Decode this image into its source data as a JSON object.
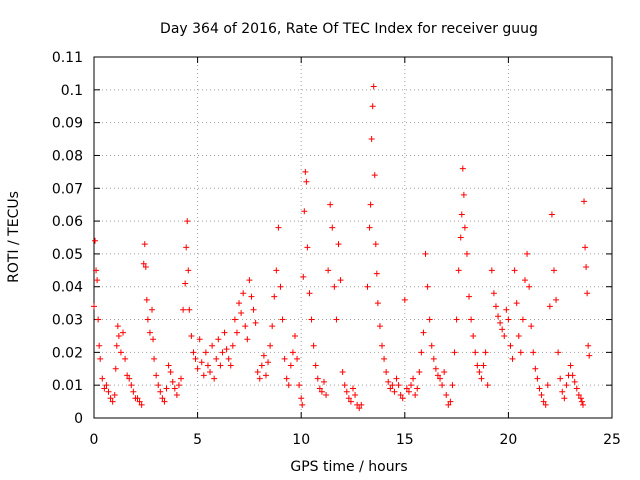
{
  "chart_data": {
    "type": "scatter",
    "title": "Day 364 of 2016, Rate Of TEC Index for receiver guug",
    "xlabel": "GPS time / hours",
    "ylabel": "ROTI / TECUs",
    "xlim": [
      0,
      25
    ],
    "ylim": [
      0,
      0.11
    ],
    "xticks": [
      "0",
      "5",
      "10",
      "15",
      "20",
      "25"
    ],
    "yticks": [
      "0",
      "0.01",
      "0.02",
      "0.03",
      "0.04",
      "0.05",
      "0.06",
      "0.07",
      "0.08",
      "0.09",
      "0.1",
      "0.11"
    ],
    "grid": true,
    "marker": "plus",
    "color": "#ff0000",
    "points": [
      [
        0.0,
        0.034
      ],
      [
        0.05,
        0.054
      ],
      [
        0.1,
        0.045
      ],
      [
        0.15,
        0.042
      ],
      [
        0.2,
        0.03
      ],
      [
        0.25,
        0.022
      ],
      [
        0.3,
        0.018
      ],
      [
        0.4,
        0.012
      ],
      [
        0.5,
        0.009
      ],
      [
        0.6,
        0.01
      ],
      [
        0.7,
        0.008
      ],
      [
        0.8,
        0.006
      ],
      [
        0.9,
        0.005
      ],
      [
        1.0,
        0.007
      ],
      [
        1.05,
        0.015
      ],
      [
        1.1,
        0.022
      ],
      [
        1.15,
        0.028
      ],
      [
        1.2,
        0.025
      ],
      [
        1.3,
        0.02
      ],
      [
        1.4,
        0.026
      ],
      [
        1.5,
        0.018
      ],
      [
        1.6,
        0.013
      ],
      [
        1.7,
        0.012
      ],
      [
        1.8,
        0.01
      ],
      [
        1.9,
        0.008
      ],
      [
        2.0,
        0.006
      ],
      [
        2.1,
        0.006
      ],
      [
        2.2,
        0.005
      ],
      [
        2.3,
        0.004
      ],
      [
        2.4,
        0.047
      ],
      [
        2.45,
        0.053
      ],
      [
        2.5,
        0.046
      ],
      [
        2.55,
        0.036
      ],
      [
        2.6,
        0.03
      ],
      [
        2.7,
        0.026
      ],
      [
        2.8,
        0.033
      ],
      [
        2.85,
        0.024
      ],
      [
        2.9,
        0.018
      ],
      [
        3.0,
        0.013
      ],
      [
        3.1,
        0.01
      ],
      [
        3.2,
        0.008
      ],
      [
        3.3,
        0.006
      ],
      [
        3.4,
        0.005
      ],
      [
        3.5,
        0.009
      ],
      [
        3.6,
        0.016
      ],
      [
        3.7,
        0.014
      ],
      [
        3.8,
        0.011
      ],
      [
        3.9,
        0.009
      ],
      [
        4.0,
        0.007
      ],
      [
        4.1,
        0.01
      ],
      [
        4.2,
        0.012
      ],
      [
        4.3,
        0.033
      ],
      [
        4.4,
        0.041
      ],
      [
        4.45,
        0.052
      ],
      [
        4.5,
        0.06
      ],
      [
        4.55,
        0.045
      ],
      [
        4.6,
        0.033
      ],
      [
        4.7,
        0.025
      ],
      [
        4.8,
        0.02
      ],
      [
        4.9,
        0.018
      ],
      [
        5.0,
        0.015
      ],
      [
        5.1,
        0.024
      ],
      [
        5.2,
        0.017
      ],
      [
        5.3,
        0.013
      ],
      [
        5.4,
        0.02
      ],
      [
        5.5,
        0.016
      ],
      [
        5.6,
        0.014
      ],
      [
        5.7,
        0.022
      ],
      [
        5.8,
        0.012
      ],
      [
        5.9,
        0.018
      ],
      [
        6.0,
        0.024
      ],
      [
        6.1,
        0.016
      ],
      [
        6.2,
        0.02
      ],
      [
        6.3,
        0.026
      ],
      [
        6.4,
        0.021
      ],
      [
        6.5,
        0.018
      ],
      [
        6.6,
        0.016
      ],
      [
        6.7,
        0.022
      ],
      [
        6.8,
        0.03
      ],
      [
        6.9,
        0.026
      ],
      [
        7.0,
        0.035
      ],
      [
        7.1,
        0.032
      ],
      [
        7.2,
        0.038
      ],
      [
        7.3,
        0.028
      ],
      [
        7.4,
        0.024
      ],
      [
        7.5,
        0.042
      ],
      [
        7.6,
        0.037
      ],
      [
        7.7,
        0.033
      ],
      [
        7.8,
        0.029
      ],
      [
        7.9,
        0.014
      ],
      [
        8.0,
        0.012
      ],
      [
        8.1,
        0.016
      ],
      [
        8.2,
        0.019
      ],
      [
        8.3,
        0.013
      ],
      [
        8.4,
        0.017
      ],
      [
        8.5,
        0.022
      ],
      [
        8.6,
        0.028
      ],
      [
        8.7,
        0.037
      ],
      [
        8.8,
        0.045
      ],
      [
        8.9,
        0.058
      ],
      [
        9.0,
        0.04
      ],
      [
        9.1,
        0.03
      ],
      [
        9.2,
        0.018
      ],
      [
        9.3,
        0.012
      ],
      [
        9.4,
        0.01
      ],
      [
        9.5,
        0.016
      ],
      [
        9.6,
        0.02
      ],
      [
        9.7,
        0.025
      ],
      [
        9.8,
        0.018
      ],
      [
        9.9,
        0.01
      ],
      [
        10.0,
        0.006
      ],
      [
        10.05,
        0.004
      ],
      [
        10.1,
        0.043
      ],
      [
        10.15,
        0.063
      ],
      [
        10.2,
        0.075
      ],
      [
        10.25,
        0.072
      ],
      [
        10.3,
        0.052
      ],
      [
        10.4,
        0.038
      ],
      [
        10.5,
        0.03
      ],
      [
        10.6,
        0.022
      ],
      [
        10.7,
        0.016
      ],
      [
        10.8,
        0.012
      ],
      [
        10.9,
        0.009
      ],
      [
        11.0,
        0.008
      ],
      [
        11.1,
        0.011
      ],
      [
        11.2,
        0.007
      ],
      [
        11.3,
        0.045
      ],
      [
        11.4,
        0.065
      ],
      [
        11.5,
        0.058
      ],
      [
        11.6,
        0.04
      ],
      [
        11.7,
        0.03
      ],
      [
        11.8,
        0.053
      ],
      [
        11.9,
        0.042
      ],
      [
        12.0,
        0.014
      ],
      [
        12.1,
        0.01
      ],
      [
        12.2,
        0.008
      ],
      [
        12.3,
        0.006
      ],
      [
        12.4,
        0.005
      ],
      [
        12.5,
        0.009
      ],
      [
        12.6,
        0.007
      ],
      [
        12.7,
        0.004
      ],
      [
        12.8,
        0.003
      ],
      [
        12.9,
        0.004
      ],
      [
        13.2,
        0.04
      ],
      [
        13.3,
        0.058
      ],
      [
        13.35,
        0.065
      ],
      [
        13.4,
        0.085
      ],
      [
        13.45,
        0.095
      ],
      [
        13.5,
        0.101
      ],
      [
        13.55,
        0.074
      ],
      [
        13.6,
        0.053
      ],
      [
        13.65,
        0.044
      ],
      [
        13.7,
        0.035
      ],
      [
        13.8,
        0.028
      ],
      [
        13.9,
        0.022
      ],
      [
        14.0,
        0.018
      ],
      [
        14.1,
        0.014
      ],
      [
        14.2,
        0.011
      ],
      [
        14.3,
        0.009
      ],
      [
        14.4,
        0.01
      ],
      [
        14.5,
        0.008
      ],
      [
        14.6,
        0.012
      ],
      [
        14.7,
        0.01
      ],
      [
        14.8,
        0.007
      ],
      [
        14.9,
        0.006
      ],
      [
        15.0,
        0.036
      ],
      [
        15.1,
        0.009
      ],
      [
        15.2,
        0.008
      ],
      [
        15.3,
        0.01
      ],
      [
        15.4,
        0.012
      ],
      [
        15.5,
        0.007
      ],
      [
        15.6,
        0.009
      ],
      [
        15.7,
        0.014
      ],
      [
        15.8,
        0.02
      ],
      [
        15.9,
        0.026
      ],
      [
        16.0,
        0.05
      ],
      [
        16.1,
        0.04
      ],
      [
        16.2,
        0.03
      ],
      [
        16.3,
        0.022
      ],
      [
        16.4,
        0.018
      ],
      [
        16.5,
        0.015
      ],
      [
        16.6,
        0.013
      ],
      [
        16.7,
        0.012
      ],
      [
        16.8,
        0.01
      ],
      [
        16.9,
        0.014
      ],
      [
        17.0,
        0.007
      ],
      [
        17.1,
        0.004
      ],
      [
        17.2,
        0.005
      ],
      [
        17.3,
        0.01
      ],
      [
        17.4,
        0.02
      ],
      [
        17.5,
        0.03
      ],
      [
        17.6,
        0.045
      ],
      [
        17.7,
        0.055
      ],
      [
        17.75,
        0.062
      ],
      [
        17.8,
        0.076
      ],
      [
        17.85,
        0.068
      ],
      [
        17.9,
        0.058
      ],
      [
        18.0,
        0.05
      ],
      [
        18.1,
        0.037
      ],
      [
        18.2,
        0.03
      ],
      [
        18.3,
        0.025
      ],
      [
        18.4,
        0.02
      ],
      [
        18.5,
        0.016
      ],
      [
        18.6,
        0.014
      ],
      [
        18.7,
        0.012
      ],
      [
        18.8,
        0.016
      ],
      [
        18.9,
        0.02
      ],
      [
        19.0,
        0.01
      ],
      [
        19.2,
        0.045
      ],
      [
        19.3,
        0.038
      ],
      [
        19.4,
        0.034
      ],
      [
        19.5,
        0.031
      ],
      [
        19.6,
        0.029
      ],
      [
        19.7,
        0.027
      ],
      [
        19.8,
        0.025
      ],
      [
        19.9,
        0.033
      ],
      [
        20.0,
        0.03
      ],
      [
        20.1,
        0.022
      ],
      [
        20.2,
        0.018
      ],
      [
        20.3,
        0.045
      ],
      [
        20.4,
        0.035
      ],
      [
        20.5,
        0.025
      ],
      [
        20.6,
        0.02
      ],
      [
        20.7,
        0.03
      ],
      [
        20.8,
        0.042
      ],
      [
        20.9,
        0.05
      ],
      [
        21.0,
        0.04
      ],
      [
        21.1,
        0.028
      ],
      [
        21.2,
        0.02
      ],
      [
        21.3,
        0.015
      ],
      [
        21.4,
        0.012
      ],
      [
        21.5,
        0.009
      ],
      [
        21.6,
        0.007
      ],
      [
        21.7,
        0.005
      ],
      [
        21.8,
        0.004
      ],
      [
        21.9,
        0.01
      ],
      [
        22.0,
        0.034
      ],
      [
        22.1,
        0.062
      ],
      [
        22.2,
        0.045
      ],
      [
        22.3,
        0.036
      ],
      [
        22.4,
        0.02
      ],
      [
        22.5,
        0.012
      ],
      [
        22.6,
        0.008
      ],
      [
        22.7,
        0.006
      ],
      [
        22.8,
        0.01
      ],
      [
        22.9,
        0.013
      ],
      [
        23.0,
        0.016
      ],
      [
        23.1,
        0.013
      ],
      [
        23.2,
        0.011
      ],
      [
        23.3,
        0.009
      ],
      [
        23.4,
        0.007
      ],
      [
        23.5,
        0.006
      ],
      [
        23.55,
        0.005
      ],
      [
        23.6,
        0.004
      ],
      [
        23.65,
        0.066
      ],
      [
        23.7,
        0.052
      ],
      [
        23.75,
        0.046
      ],
      [
        23.8,
        0.038
      ],
      [
        23.85,
        0.022
      ],
      [
        23.9,
        0.019
      ]
    ]
  }
}
